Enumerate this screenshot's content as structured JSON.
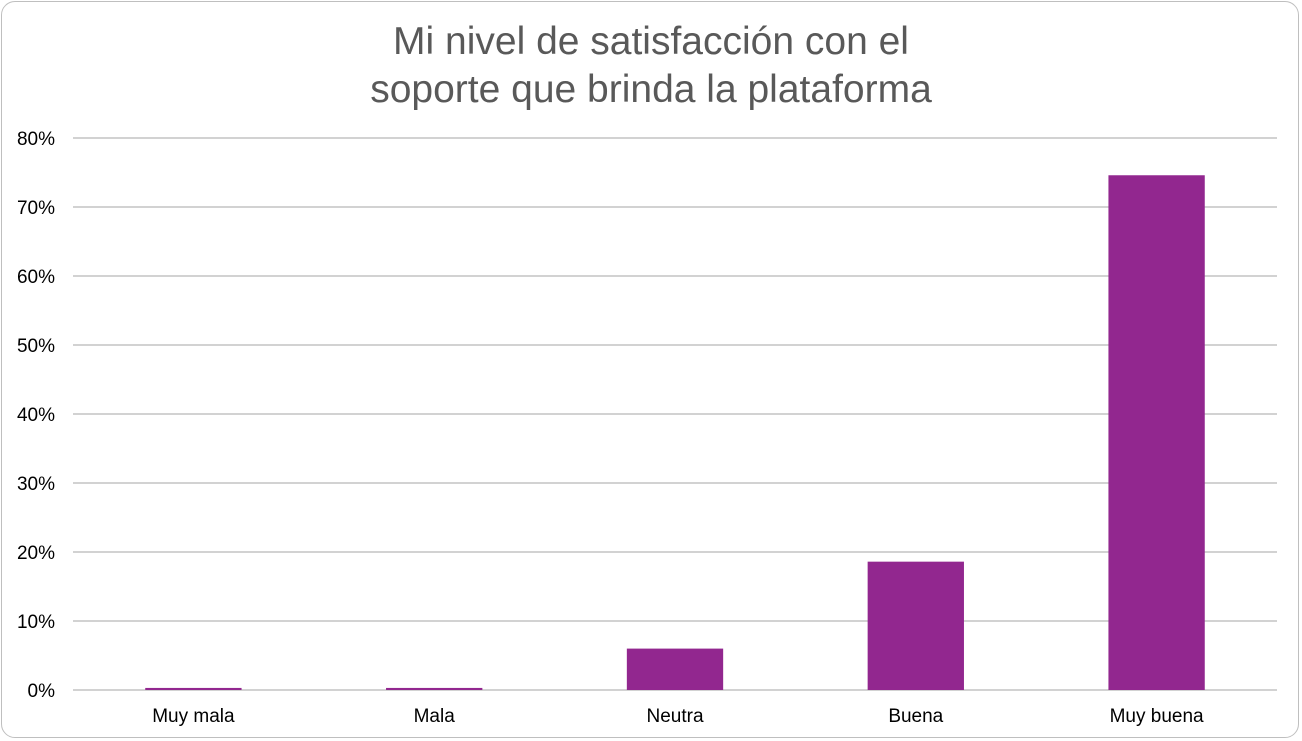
{
  "chart_data": {
    "type": "bar",
    "title_lines": [
      "Mi nivel de satisfacción con el",
      "soporte que brinda la plataforma"
    ],
    "categories": [
      "Muy mala",
      "Mala",
      "Neutra",
      "Buena",
      "Muy buena"
    ],
    "values": [
      0.3,
      0.3,
      6.0,
      18.6,
      74.6
    ],
    "xlabel": "",
    "ylabel": "",
    "ylim": [
      0,
      80
    ],
    "yticks": [
      0,
      10,
      20,
      30,
      40,
      50,
      60,
      70,
      80
    ],
    "ytick_labels": [
      "0%",
      "10%",
      "20%",
      "30%",
      "40%",
      "50%",
      "60%",
      "70%",
      "80%"
    ],
    "grid": true,
    "legend": "none",
    "bar_color": "#92278f",
    "grid_color": "#a6a6a6"
  }
}
